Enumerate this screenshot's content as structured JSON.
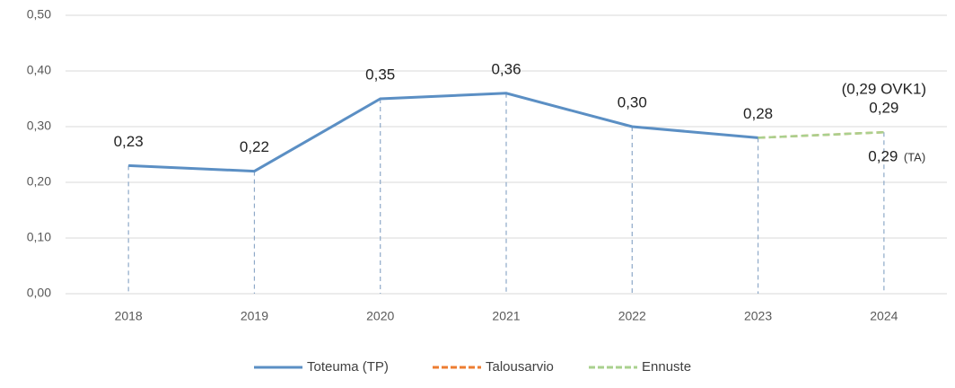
{
  "chart_data": {
    "type": "line",
    "categories": [
      "2018",
      "2019",
      "2020",
      "2021",
      "2022",
      "2023",
      "2024"
    ],
    "series": [
      {
        "name": "Toteuma (TP)",
        "color": "#5b8fc4",
        "dashed": false,
        "values": [
          0.23,
          0.22,
          0.35,
          0.36,
          0.3,
          0.28,
          null
        ],
        "value_labels": [
          "0,23",
          "0,22",
          "0,35",
          "0,36",
          "0,30",
          "0,28",
          null
        ]
      },
      {
        "name": "Talousarvio",
        "color": "#ed7d31",
        "dashed": true,
        "values": [
          null,
          null,
          null,
          null,
          null,
          0.28,
          0.29
        ],
        "value_labels": [
          null,
          null,
          null,
          null,
          null,
          null,
          "0,29"
        ]
      },
      {
        "name": "Ennuste",
        "color": "#a9d18e",
        "dashed": true,
        "values": [
          null,
          null,
          null,
          null,
          null,
          0.28,
          0.29
        ],
        "value_labels": [
          null,
          null,
          null,
          null,
          null,
          null,
          "0,29"
        ]
      }
    ],
    "annotations": [
      {
        "text": "(0,29 OVK1)"
      },
      {
        "text": "(TA)"
      }
    ],
    "ylim": [
      0,
      0.5
    ],
    "yticks": [
      {
        "value": 0,
        "label": "0,00"
      },
      {
        "value": 0.1,
        "label": "0,10"
      },
      {
        "value": 0.2,
        "label": "0,20"
      },
      {
        "value": 0.3,
        "label": "0,30"
      },
      {
        "value": 0.4,
        "label": "0,40"
      },
      {
        "value": 0.5,
        "label": "0,50"
      }
    ],
    "grid": true,
    "legend": "bottom"
  }
}
